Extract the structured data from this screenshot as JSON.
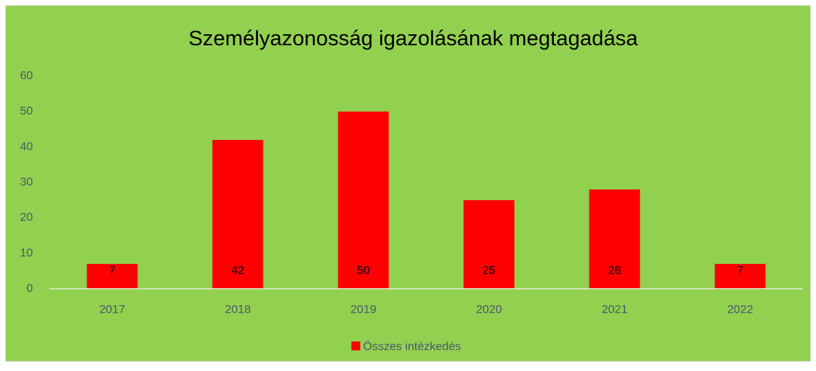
{
  "chart_data": {
    "type": "bar",
    "title": "Személyazonosság igazolásának megtagadása",
    "categories": [
      "2017",
      "2018",
      "2019",
      "2020",
      "2021",
      "2022"
    ],
    "series": [
      {
        "name": "Összes intézkedés",
        "color": "#ff0000",
        "values": [
          7,
          42,
          50,
          25,
          28,
          7
        ]
      }
    ],
    "ylim": [
      0,
      60
    ],
    "yticks": [
      0,
      10,
      20,
      30,
      40,
      50,
      60
    ],
    "grid": false,
    "legend": "bottom",
    "background": "#92d050"
  }
}
